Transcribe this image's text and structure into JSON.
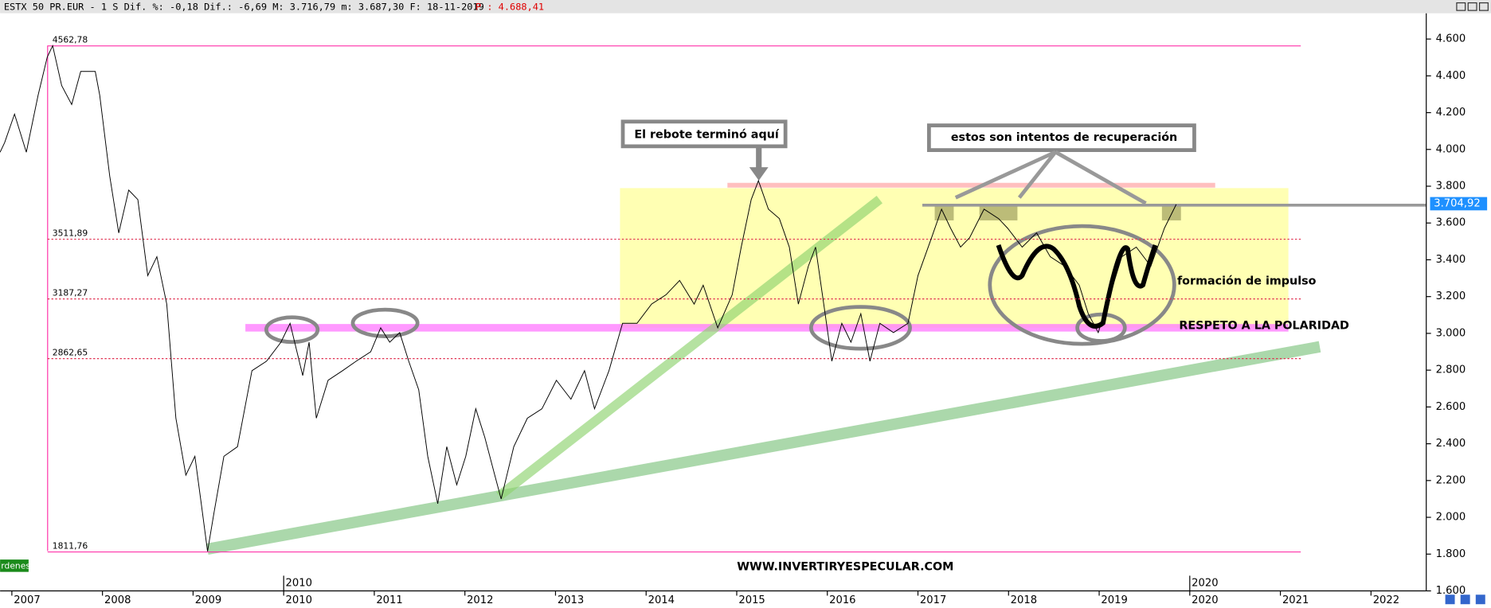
{
  "chart_data": {
    "type": "line",
    "header": "ESTX 50 PR.EUR -  1 S Dif. %: -0,18 Dif.: -6,69 M: 3.716,79 m: 3.687,30 F: 18-11-2019",
    "header_price": "P : 4.688,41",
    "color": "#000000",
    "x": [
      2006.87,
      2006.92,
      2007.03,
      2007.16,
      2007.29,
      2007.39,
      2007.45,
      2007.55,
      2007.66,
      2007.76,
      2007.92,
      2007.97,
      2008.08,
      2008.18,
      2008.29,
      2008.39,
      2008.5,
      2008.6,
      2008.71,
      2008.81,
      2008.92,
      2009.02,
      2009.09,
      2009.16,
      2009.23,
      2009.34,
      2009.49,
      2009.65,
      2009.81,
      2009.97,
      2010.07,
      2010.21,
      2010.28,
      2010.36,
      2010.49,
      2010.65,
      2010.8,
      2010.96,
      2011.07,
      2011.17,
      2011.28,
      2011.38,
      2011.49,
      2011.59,
      2011.7,
      2011.8,
      2011.91,
      2012.01,
      2012.12,
      2012.22,
      2012.33,
      2012.4,
      2012.54,
      2012.69,
      2012.85,
      2013.01,
      2013.17,
      2013.32,
      2013.43,
      2013.59,
      2013.74,
      2013.9,
      2014.06,
      2014.22,
      2014.37,
      2014.53,
      2014.63,
      2014.79,
      2014.95,
      2015.05,
      2015.16,
      2015.24,
      2015.35,
      2015.47,
      2015.58,
      2015.68,
      2015.79,
      2015.87,
      2015.96,
      2016.05,
      2016.16,
      2016.26,
      2016.37,
      2016.47,
      2016.58,
      2016.73,
      2016.89,
      2017.0,
      2017.15,
      2017.26,
      2017.36,
      2017.47,
      2017.57,
      2017.73,
      2017.89,
      2017.99,
      2018.15,
      2018.31,
      2018.46,
      2018.62,
      2018.78,
      2018.88,
      2018.99,
      2019.09,
      2019.25,
      2019.41,
      2019.57,
      2019.72,
      2019.85
    ],
    "values": [
      3985,
      4037,
      4192,
      3985,
      4295,
      4502,
      4564,
      4347,
      4244,
      4424,
      4424,
      4295,
      3856,
      3546,
      3779,
      3727,
      3314,
      3417,
      3159,
      2539,
      2229,
      2332,
      2074,
      1815,
      2022,
      2332,
      2384,
      2797,
      2849,
      2952,
      3055,
      2771,
      2952,
      2539,
      2745,
      2797,
      2849,
      2900,
      3030,
      2952,
      3004,
      2849,
      2694,
      2332,
      2074,
      2384,
      2177,
      2332,
      2590,
      2435,
      2229,
      2100,
      2384,
      2539,
      2590,
      2745,
      2642,
      2797,
      2590,
      2797,
      3055,
      3055,
      3159,
      3210,
      3288,
      3159,
      3262,
      3030,
      3210,
      3469,
      3727,
      3830,
      3675,
      3624,
      3469,
      3159,
      3365,
      3469,
      3159,
      2849,
      3055,
      2952,
      3107,
      2849,
      3055,
      3004,
      3055,
      3314,
      3520,
      3675,
      3572,
      3469,
      3520,
      3675,
      3624,
      3572,
      3469,
      3546,
      3417,
      3365,
      3262,
      3107,
      3004,
      3159,
      3417,
      3469,
      3365,
      3572,
      3701
    ],
    "xlim": [
      2006.87,
      2022.61
    ],
    "xticks": [
      2007,
      2008,
      2009,
      2010,
      2011,
      2012,
      2013,
      2014,
      2015,
      2016,
      2017,
      2018,
      2019,
      2020,
      2021,
      2022
    ],
    "year_markers": [
      2010,
      2020
    ],
    "ylim": [
      1600,
      4740
    ],
    "yticks": [
      {
        "value": 1600,
        "label": "1.600"
      },
      {
        "value": 1800,
        "label": "1.800"
      },
      {
        "value": 2000,
        "label": "2.000"
      },
      {
        "value": 2200,
        "label": "2.200"
      },
      {
        "value": 2400,
        "label": "2.400"
      },
      {
        "value": 2600,
        "label": "2.600"
      },
      {
        "value": 2800,
        "label": "2.800"
      },
      {
        "value": 3000,
        "label": "3.000"
      },
      {
        "value": 3200,
        "label": "3.200"
      },
      {
        "value": 3400,
        "label": "3.400"
      },
      {
        "value": 3600,
        "label": "3.600"
      },
      {
        "value": 3800,
        "label": "3.800"
      },
      {
        "value": 4000,
        "label": "4.000"
      },
      {
        "value": 4200,
        "label": "4.200"
      },
      {
        "value": 4400,
        "label": "4.400"
      },
      {
        "value": 4600,
        "label": "4.600"
      }
    ],
    "levels": [
      {
        "value": 4562.78,
        "label": "4562,78"
      },
      {
        "value": 3511.89,
        "label": "3511,89"
      },
      {
        "value": 3187.27,
        "label": "3187,27"
      },
      {
        "value": 2862.65,
        "label": "2862,65"
      },
      {
        "value": 1811.76,
        "label": "1811,76"
      }
    ],
    "last_price": {
      "value": 3704.92,
      "label": "3.704,92"
    },
    "annotations": [
      "El rebote terminó aquí",
      "estos son intentos de recuperación",
      "formación de impulso",
      "RESPETO A LA POLARIDAD",
      "WWW.INVERTIRYESPECULAR.COM"
    ],
    "button": "rdenes"
  }
}
